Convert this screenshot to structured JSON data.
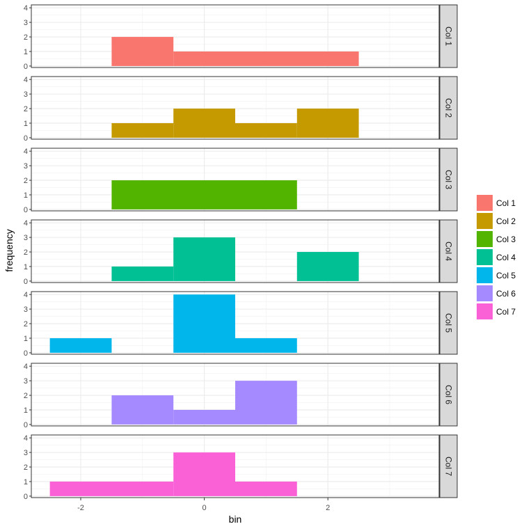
{
  "chart_data": {
    "type": "bar",
    "xlabel": "bin",
    "ylabel": "frequency",
    "x_ticks": [
      -2,
      0,
      2
    ],
    "y_ticks": [
      0,
      1,
      2,
      3,
      4
    ],
    "xlim": [
      -2.8,
      3.8
    ],
    "ylim": [
      -0.1,
      4.2
    ],
    "grid": true,
    "legend_position": "right",
    "series": [
      {
        "name": "Col 1",
        "color": "#F8766D",
        "bins": [
          {
            "x0": -1.5,
            "x1": -0.5,
            "y": 2
          },
          {
            "x0": -0.5,
            "x1": 2.5,
            "y": 1
          }
        ]
      },
      {
        "name": "Col 2",
        "color": "#C49A00",
        "bins": [
          {
            "x0": -1.5,
            "x1": -0.5,
            "y": 1
          },
          {
            "x0": -0.5,
            "x1": 0.5,
            "y": 2
          },
          {
            "x0": 0.5,
            "x1": 1.5,
            "y": 1
          },
          {
            "x0": 1.5,
            "x1": 2.5,
            "y": 2
          }
        ]
      },
      {
        "name": "Col 3",
        "color": "#53B400",
        "bins": [
          {
            "x0": -1.5,
            "x1": 1.5,
            "y": 2
          }
        ]
      },
      {
        "name": "Col 4",
        "color": "#00C094",
        "bins": [
          {
            "x0": -1.5,
            "x1": -0.5,
            "y": 1
          },
          {
            "x0": -0.5,
            "x1": 0.5,
            "y": 3
          },
          {
            "x0": 1.5,
            "x1": 2.5,
            "y": 2
          }
        ]
      },
      {
        "name": "Col 5",
        "color": "#00B6EB",
        "bins": [
          {
            "x0": -2.5,
            "x1": -1.5,
            "y": 1
          },
          {
            "x0": -0.5,
            "x1": 0.5,
            "y": 4
          },
          {
            "x0": 0.5,
            "x1": 1.5,
            "y": 1
          }
        ]
      },
      {
        "name": "Col 6",
        "color": "#A58AFF",
        "bins": [
          {
            "x0": -1.5,
            "x1": -0.5,
            "y": 2
          },
          {
            "x0": -0.5,
            "x1": 0.5,
            "y": 1
          },
          {
            "x0": 0.5,
            "x1": 1.5,
            "y": 3
          }
        ]
      },
      {
        "name": "Col 7",
        "color": "#FB61D7",
        "bins": [
          {
            "x0": -2.5,
            "x1": -0.5,
            "y": 1
          },
          {
            "x0": -0.5,
            "x1": 0.5,
            "y": 3
          },
          {
            "x0": 0.5,
            "x1": 1.5,
            "y": 1
          }
        ]
      }
    ]
  }
}
